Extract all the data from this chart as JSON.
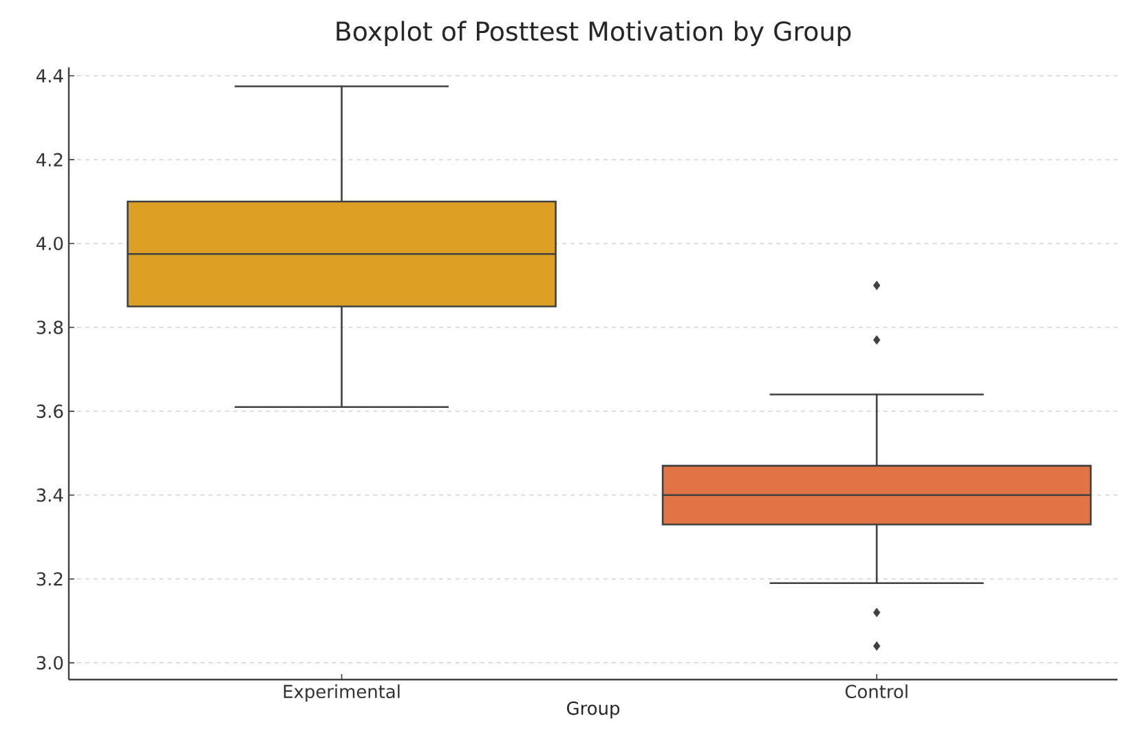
{
  "chart_data": {
    "type": "box",
    "title": "Boxplot of Posttest Motivation by Group",
    "xlabel": "Group",
    "categories": [
      "Experimental",
      "Control"
    ],
    "colors": [
      "#dba024",
      "#e07444"
    ],
    "boxes": [
      {
        "low": 3.61,
        "q1": 3.85,
        "median": 3.975,
        "q3": 4.1,
        "high": 4.375
      },
      {
        "low": 3.19,
        "q1": 3.33,
        "median": 3.4,
        "q3": 3.47,
        "high": 3.64,
        "outliers": [
          3.9,
          3.77,
          3.12,
          3.04
        ]
      }
    ],
    "ylim": [
      2.96,
      4.42
    ],
    "yticks": [
      {
        "value": 3,
        "label": "3.0"
      },
      3.2,
      3.4,
      3.6,
      3.8,
      {
        "value": 4,
        "label": "4.0"
      },
      4.2,
      4.4
    ],
    "grid": "y",
    "marker": "diamond"
  }
}
